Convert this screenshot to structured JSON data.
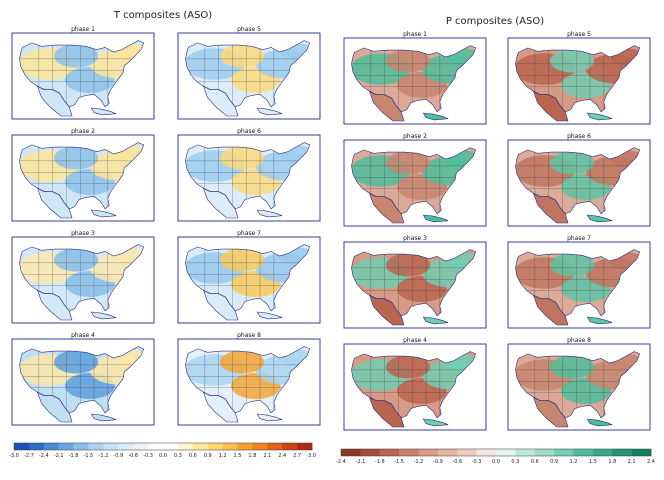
{
  "figure": {
    "left": {
      "title": "T composites (ASO)",
      "panels": [
        {
          "label": "phase 1",
          "tint": "tw"
        },
        {
          "label": "phase 5",
          "tint": "tc"
        },
        {
          "label": "phase 2",
          "tint": "tw"
        },
        {
          "label": "phase 6",
          "tint": "tc"
        },
        {
          "label": "phase 3",
          "tint": "tm"
        },
        {
          "label": "phase 7",
          "tint": "te"
        },
        {
          "label": "phase 4",
          "tint": "tb"
        },
        {
          "label": "phase 8",
          "tint": "to"
        }
      ],
      "colorbar": {
        "ticks": [
          "-3.0",
          "-2.7",
          "-2.4",
          "-2.1",
          "-1.8",
          "-1.5",
          "-1.2",
          "-0.9",
          "-0.6",
          "-0.3",
          "0.0",
          "0.3",
          "0.6",
          "0.9",
          "1.2",
          "1.5",
          "1.8",
          "2.1",
          "2.4",
          "2.7",
          "3.0"
        ],
        "colors": [
          "#1f4fb3",
          "#2f6ccb",
          "#4a8ad8",
          "#6aa6e3",
          "#8cc0ec",
          "#acd4f2",
          "#c5e2f6",
          "#dcedf9",
          "#ecf5fb",
          "#ffffff",
          "#ffffff",
          "#fff6cc",
          "#ffe9a0",
          "#fdd873",
          "#f9c04d",
          "#f5a32f",
          "#ee8424",
          "#e0631c",
          "#cc4316",
          "#b02a12"
        ]
      }
    },
    "right": {
      "title": "P composites (ASO)",
      "panels": [
        {
          "label": "phase 1",
          "tint": "pg"
        },
        {
          "label": "phase 5",
          "tint": "pb"
        },
        {
          "label": "phase 2",
          "tint": "pg"
        },
        {
          "label": "phase 6",
          "tint": "pm"
        },
        {
          "label": "phase 3",
          "tint": "pb"
        },
        {
          "label": "phase 7",
          "tint": "pm"
        },
        {
          "label": "phase 4",
          "tint": "pb"
        },
        {
          "label": "phase 8",
          "tint": "pg"
        }
      ],
      "colorbar": {
        "ticks": [
          "-2.4",
          "-2.1",
          "-1.8",
          "-1.5",
          "-1.2",
          "-0.9",
          "-0.6",
          "-0.3",
          "0.0",
          "0.3",
          "0.6",
          "0.9",
          "1.2",
          "1.5",
          "1.8",
          "2.1",
          "2.4"
        ],
        "colors": [
          "#8b3a2a",
          "#a44e3a",
          "#bb6650",
          "#cc7f69",
          "#d99a86",
          "#e4b4a3",
          "#eecdbf",
          "#f7e6de",
          "#e3f4ee",
          "#bfe8dc",
          "#9bdcc8",
          "#72cdb2",
          "#4fbd9b",
          "#35aa86",
          "#229673",
          "#158060"
        ]
      }
    },
    "palette": {
      "tw": {
        "base": "#cfe6f7",
        "warm": "#fde49a",
        "cool": "#8ec1ea"
      },
      "tc": {
        "base": "#dcedf9",
        "warm": "#fbd97c",
        "cool": "#9ccbee"
      },
      "tm": {
        "base": "#d4e9f7",
        "warm": "#fce8b0",
        "cool": "#86bde8"
      },
      "te": {
        "base": "#d8ebf8",
        "warm": "#f8c95e",
        "cool": "#98c8ec"
      },
      "tb": {
        "base": "#bfdff5",
        "warm": "#fde7a6",
        "cool": "#5e9fdc"
      },
      "to": {
        "base": "#e3f0fa",
        "warm": "#f3a437",
        "cool": "#a9d3f0"
      },
      "pg": {
        "base": "#dca998",
        "wet": "#4fbd9b",
        "dry": "#c78670"
      },
      "pb": {
        "base": "#d79a86",
        "wet": "#72cdb2",
        "dry": "#b96550"
      },
      "pm": {
        "base": "#dcaa98",
        "wet": "#5ec4a5",
        "dry": "#c07560"
      }
    }
  }
}
